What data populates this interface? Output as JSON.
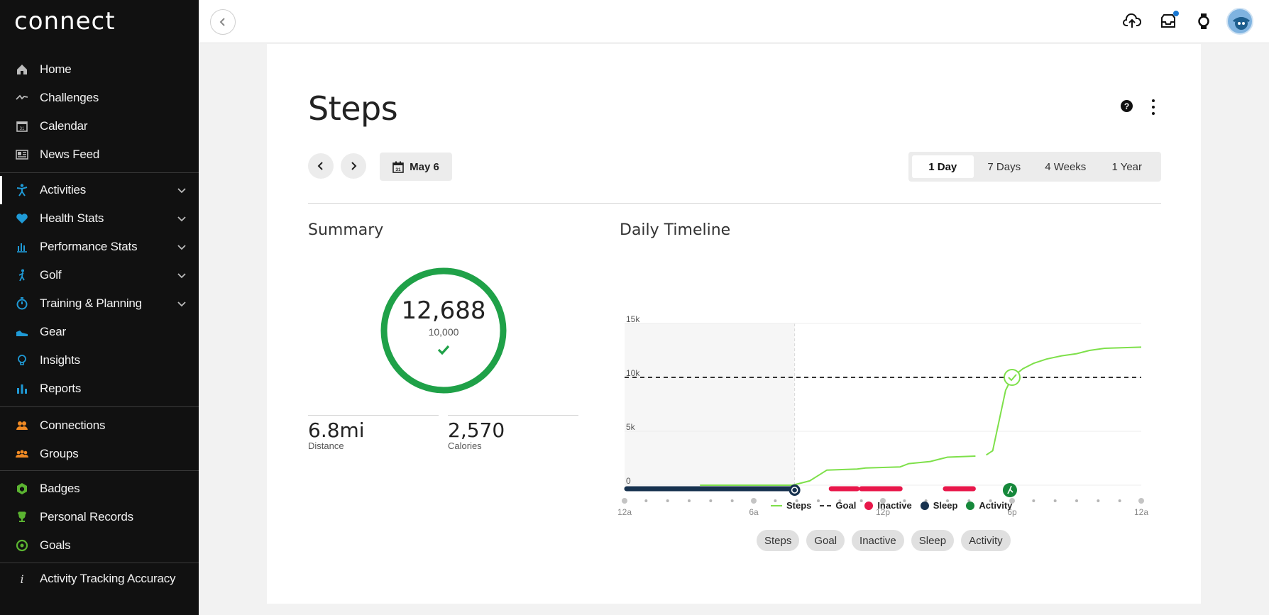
{
  "app": {
    "logo_text": "connect"
  },
  "sidebar": {
    "items": [
      {
        "label": "Home",
        "icon": "home-icon",
        "group": 0
      },
      {
        "label": "Challenges",
        "icon": "challenges-icon",
        "group": 0
      },
      {
        "label": "Calendar",
        "icon": "calendar-icon",
        "group": 0
      },
      {
        "label": "News Feed",
        "icon": "newsfeed-icon",
        "group": 0
      },
      {
        "label": "Activities",
        "icon": "activities-icon",
        "group": 1,
        "expandable": true,
        "active": true
      },
      {
        "label": "Health Stats",
        "icon": "heart-icon",
        "group": 1,
        "expandable": true
      },
      {
        "label": "Performance Stats",
        "icon": "bar-chart-icon",
        "group": 1,
        "expandable": true
      },
      {
        "label": "Golf",
        "icon": "golf-icon",
        "group": 1,
        "expandable": true
      },
      {
        "label": "Training & Planning",
        "icon": "stopwatch-icon",
        "group": 1,
        "expandable": true
      },
      {
        "label": "Gear",
        "icon": "shoe-icon",
        "group": 1
      },
      {
        "label": "Insights",
        "icon": "lightbulb-icon",
        "group": 1
      },
      {
        "label": "Reports",
        "icon": "reports-icon",
        "group": 1
      },
      {
        "label": "Connections",
        "icon": "connections-icon",
        "group": 2
      },
      {
        "label": "Groups",
        "icon": "groups-icon",
        "group": 2
      },
      {
        "label": "Badges",
        "icon": "badge-icon",
        "group": 3
      },
      {
        "label": "Personal Records",
        "icon": "trophy-icon",
        "group": 3
      },
      {
        "label": "Goals",
        "icon": "target-icon",
        "group": 3
      },
      {
        "label": "Activity Tracking Accuracy",
        "icon": "info-icon",
        "group": 4
      }
    ]
  },
  "topbar": {
    "icons": [
      "upload-cloud-icon",
      "inbox-icon",
      "watch-icon",
      "avatar"
    ],
    "has_notification": true
  },
  "page": {
    "title": "Steps",
    "date_label": "May 6",
    "ranges": [
      {
        "label": "1 Day",
        "selected": true
      },
      {
        "label": "7 Days",
        "selected": false
      },
      {
        "label": "4 Weeks",
        "selected": false
      },
      {
        "label": "1 Year",
        "selected": false
      }
    ]
  },
  "summary": {
    "title": "Summary",
    "steps": "12,688",
    "goal": "10,000",
    "goal_met": true,
    "distance_value": "6.8mi",
    "distance_label": "Distance",
    "calories_value": "2,570",
    "calories_label": "Calories"
  },
  "timeline": {
    "title": "Daily Timeline",
    "legend": [
      "Steps",
      "Goal",
      "Inactive",
      "Sleep",
      "Activity"
    ],
    "toggles": [
      "Steps",
      "Goal",
      "Inactive",
      "Sleep",
      "Activity"
    ]
  },
  "colors": {
    "steps": "#7ee04a",
    "inactive": "#e8174a",
    "sleep": "#17324f",
    "activity": "#16883b",
    "ring": "#1fa148",
    "brand_blue": "#1f9ad6"
  },
  "chart_data": {
    "type": "line",
    "title": "",
    "x_unit": "hour",
    "xlim": [
      0,
      24
    ],
    "ylim": [
      0,
      15000
    ],
    "y_ticks": [
      0,
      5000,
      10000,
      15000
    ],
    "y_tick_labels": [
      "0",
      "5k",
      "10k",
      "15k"
    ],
    "x_tick_labels": [
      {
        "x": 0,
        "label": "12a"
      },
      {
        "x": 6,
        "label": "6a"
      },
      {
        "x": 12,
        "label": "12p"
      },
      {
        "x": 18,
        "label": "6p"
      },
      {
        "x": 24,
        "label": "12a"
      }
    ],
    "goal": 10000,
    "series": [
      {
        "name": "Steps",
        "segments": [
          [
            [
              3.5,
              0
            ],
            [
              7.8,
              0
            ],
            [
              8.2,
              200
            ],
            [
              8.6,
              400
            ],
            [
              9.0,
              900
            ],
            [
              9.4,
              1400
            ],
            [
              10.8,
              1500
            ],
            [
              11.2,
              1600
            ],
            [
              12.8,
              1700
            ],
            [
              13.2,
              2000
            ],
            [
              14.2,
              2200
            ],
            [
              14.6,
              2400
            ],
            [
              15.0,
              2600
            ],
            [
              16.3,
              2700
            ]
          ],
          [
            [
              16.8,
              2800
            ],
            [
              17.1,
              3200
            ],
            [
              17.4,
              6000
            ],
            [
              17.7,
              8800
            ],
            [
              18.0,
              10000
            ],
            [
              18.5,
              10800
            ],
            [
              19.0,
              11300
            ],
            [
              19.6,
              11700
            ],
            [
              20.3,
              12000
            ],
            [
              21.0,
              12200
            ],
            [
              21.6,
              12500
            ],
            [
              22.3,
              12700
            ],
            [
              24.0,
              12800
            ]
          ]
        ]
      }
    ],
    "sleep_intervals": [
      [
        0,
        7.9
      ]
    ],
    "inactive_intervals": [
      [
        9.6,
        10.8
      ],
      [
        11.0,
        12.8
      ],
      [
        14.9,
        16.2
      ]
    ],
    "activity_points": [
      17.9
    ],
    "goal_crossing": {
      "x": 18.0,
      "y": 10000
    },
    "shaded_night": [
      0,
      7.9
    ]
  }
}
